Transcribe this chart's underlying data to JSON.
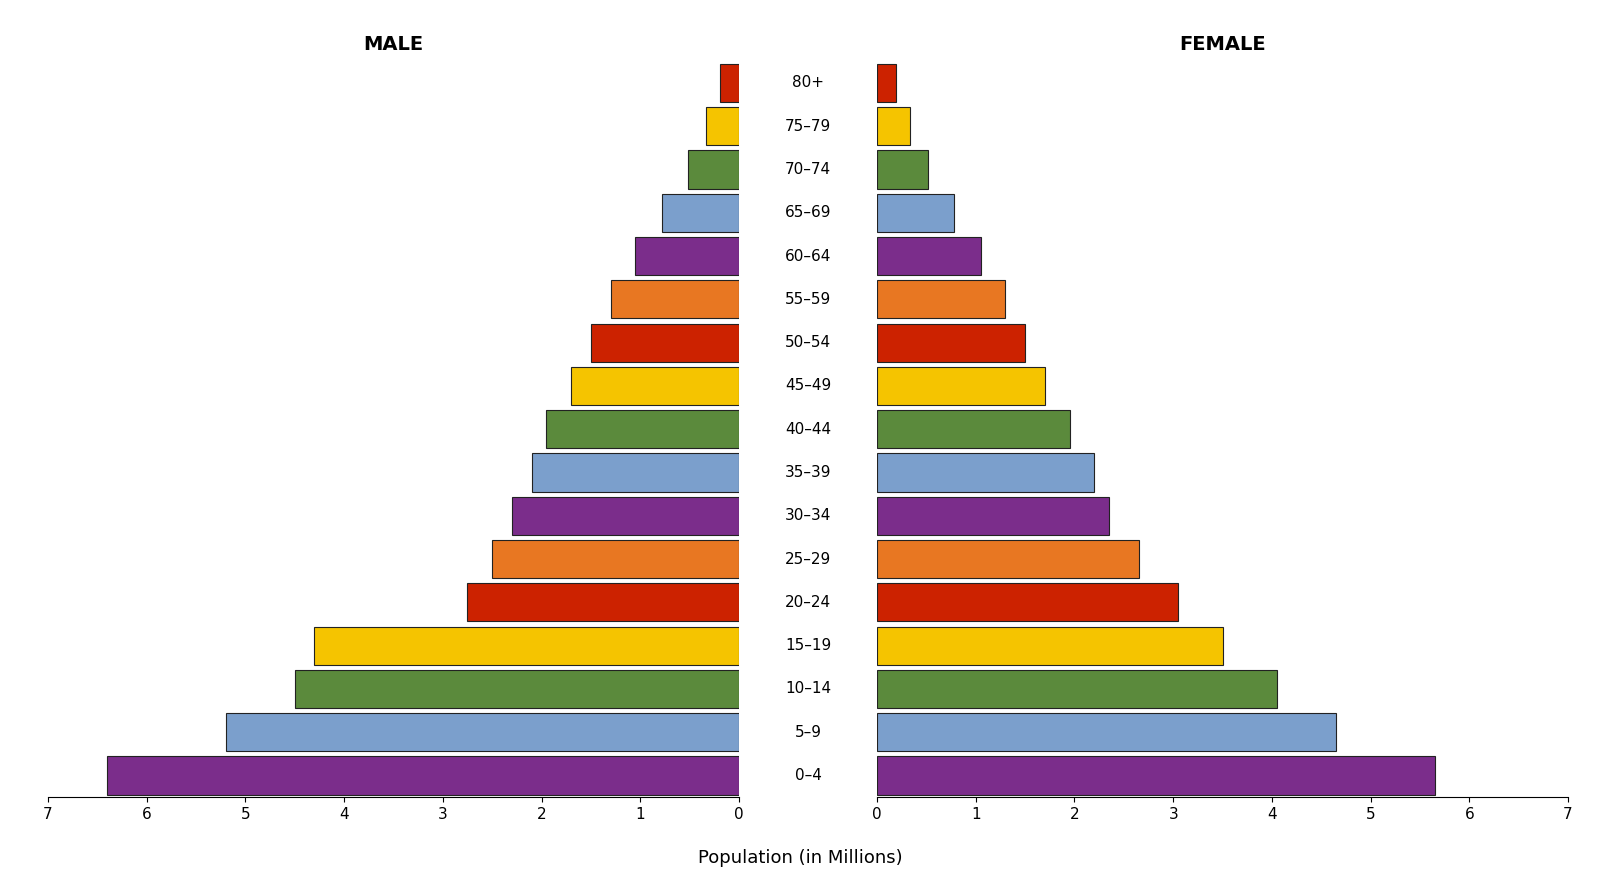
{
  "age_groups": [
    "0–4",
    "5–9",
    "10–14",
    "15–19",
    "20–24",
    "25–29",
    "30–34",
    "35–39",
    "40–44",
    "45–49",
    "50–54",
    "55–59",
    "60–64",
    "65–69",
    "70–74",
    "75–79",
    "80+"
  ],
  "male": [
    6.4,
    5.2,
    4.5,
    4.3,
    2.75,
    2.5,
    2.3,
    2.1,
    1.95,
    1.7,
    1.5,
    1.3,
    1.05,
    0.78,
    0.52,
    0.33,
    0.19
  ],
  "female": [
    5.65,
    4.65,
    4.05,
    3.5,
    3.05,
    2.65,
    2.35,
    2.2,
    1.95,
    1.7,
    1.5,
    1.3,
    1.05,
    0.78,
    0.52,
    0.33,
    0.19
  ],
  "bar_colors": [
    "#7B2D8B",
    "#7B9FCC",
    "#5B8A3C",
    "#F5C400",
    "#CC2200",
    "#E87722",
    "#7B2D8B",
    "#7B9FCC",
    "#5B8A3C",
    "#F5C400",
    "#CC2200",
    "#E87722",
    "#7B2D8B",
    "#7B9FCC",
    "#5B8A3C",
    "#F5C400",
    "#CC2200"
  ],
  "xlim": 7,
  "title_male": "MALE",
  "title_female": "FEMALE",
  "xlabel": "Population (in Millions)",
  "background_color": "#FFFFFF",
  "bar_edgecolor": "#222222",
  "bar_linewidth": 0.8,
  "bar_height": 0.88,
  "title_fontsize": 14,
  "tick_fontsize": 11,
  "label_fontsize": 11,
  "xlabel_fontsize": 13
}
